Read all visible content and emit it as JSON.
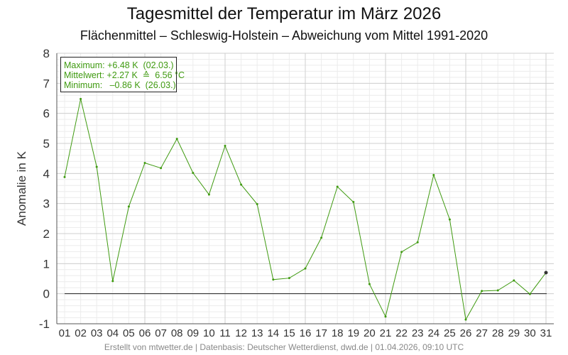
{
  "title": "Tagesmittel der Temperatur im März 2026",
  "subtitle": "Flächenmittel – Schleswig-Holstein – Abweichung vom Mittel 1991-2020",
  "footer": "Erstellt von mtwetter.de | Datenbasis: Deutscher Wetterdienst, dwd.de | 01.04.2026, 09:10 UTC",
  "legend": {
    "line1": "Maximum: +6.48 K  (02.03.)",
    "line2": "Mittelwert: +2.27 K  ≙  6.56 °C",
    "line3": "Minimum:   –0.86 K  (26.03.)"
  },
  "chart_data": {
    "type": "line",
    "ylabel": "Anomalie in K",
    "xlabel": "",
    "ylim": [
      -1,
      8
    ],
    "yticks": [
      -1,
      0,
      1,
      2,
      3,
      4,
      5,
      6,
      7,
      8
    ],
    "categories": [
      "01",
      "02",
      "03",
      "04",
      "05",
      "06",
      "07",
      "08",
      "09",
      "10",
      "11",
      "12",
      "13",
      "14",
      "15",
      "16",
      "17",
      "18",
      "19",
      "20",
      "21",
      "22",
      "23",
      "24",
      "25",
      "26",
      "27",
      "28",
      "29",
      "30",
      "31"
    ],
    "values": [
      3.88,
      6.48,
      4.22,
      0.42,
      2.9,
      4.35,
      4.18,
      5.15,
      4.02,
      3.3,
      4.92,
      3.63,
      2.98,
      0.47,
      0.52,
      0.84,
      1.86,
      3.56,
      3.05,
      0.32,
      -0.76,
      1.39,
      1.71,
      3.95,
      2.47,
      -0.86,
      0.09,
      0.11,
      0.44,
      -0.01,
      0.7
    ],
    "grid": true,
    "line_color": "#3f9a10",
    "zero_line": true
  }
}
